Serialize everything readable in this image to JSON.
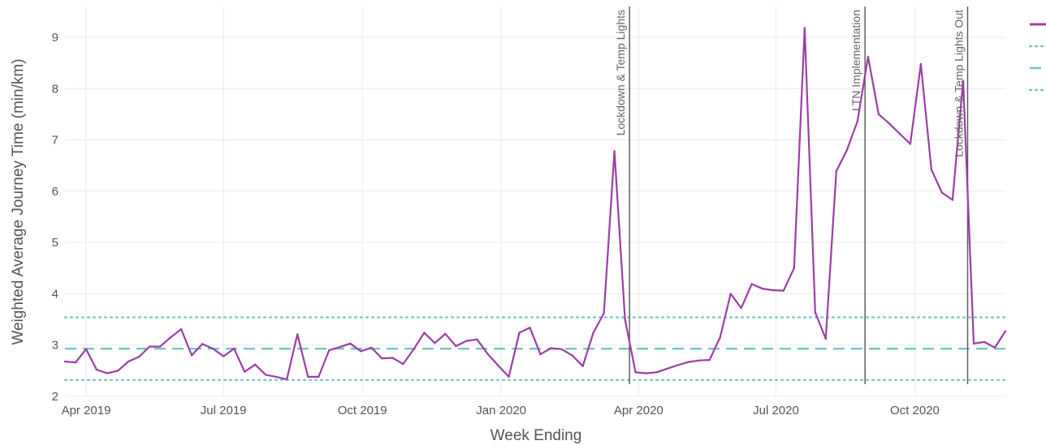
{
  "chart_data": {
    "type": "line",
    "xlabel": "Week Ending",
    "ylabel": "Weighted Average Journey Time (min/km)",
    "xlim": [
      "2019-03-18",
      "2020-11-30"
    ],
    "ylim": [
      2,
      9.6
    ],
    "grid": true,
    "x_ticks": [
      {
        "date": "2019-04-01",
        "label": "Apr 2019"
      },
      {
        "date": "2019-07-01",
        "label": "Jul 2019"
      },
      {
        "date": "2019-10-01",
        "label": "Oct 2019"
      },
      {
        "date": "2020-01-01",
        "label": "Jan 2020"
      },
      {
        "date": "2020-04-01",
        "label": "Apr 2020"
      },
      {
        "date": "2020-07-01",
        "label": "Jul 2020"
      },
      {
        "date": "2020-10-01",
        "label": "Oct 2020"
      }
    ],
    "y_ticks": [
      2,
      3,
      4,
      5,
      6,
      7,
      8,
      9
    ],
    "colors": {
      "series": "#9b3fa5",
      "reference": "#72c6c4",
      "event_line": "#555555",
      "grid": "#ebebeb"
    },
    "series": [
      {
        "x": [
          "2019-03-18",
          "2019-03-25",
          "2019-04-01",
          "2019-04-08",
          "2019-04-15",
          "2019-04-22",
          "2019-04-29",
          "2019-05-06",
          "2019-05-13",
          "2019-05-20",
          "2019-05-27",
          "2019-06-03",
          "2019-06-10",
          "2019-06-17",
          "2019-06-24",
          "2019-07-01",
          "2019-07-08",
          "2019-07-15",
          "2019-07-22",
          "2019-07-29",
          "2019-08-05",
          "2019-08-12",
          "2019-08-19",
          "2019-08-26",
          "2019-09-02",
          "2019-09-09",
          "2019-09-16",
          "2019-09-23",
          "2019-09-30",
          "2019-10-07",
          "2019-10-14",
          "2019-10-21",
          "2019-10-28",
          "2019-11-04",
          "2019-11-11",
          "2019-11-18",
          "2019-11-25",
          "2019-12-02",
          "2019-12-09",
          "2019-12-16",
          "2019-12-23",
          "2019-12-30",
          "2020-01-06",
          "2020-01-13",
          "2020-01-20",
          "2020-01-27",
          "2020-02-03",
          "2020-02-10",
          "2020-02-17",
          "2020-02-24",
          "2020-03-02",
          "2020-03-09",
          "2020-03-16",
          "2020-03-23",
          "2020-03-30",
          "2020-04-06",
          "2020-04-13",
          "2020-04-20",
          "2020-04-27",
          "2020-05-04",
          "2020-05-11",
          "2020-05-18",
          "2020-05-25",
          "2020-06-01",
          "2020-06-08",
          "2020-06-15",
          "2020-06-22",
          "2020-06-29",
          "2020-07-06",
          "2020-07-13",
          "2020-07-20",
          "2020-07-27",
          "2020-08-03",
          "2020-08-10",
          "2020-08-17",
          "2020-08-24",
          "2020-08-31",
          "2020-09-07",
          "2020-09-14",
          "2020-09-21",
          "2020-09-28",
          "2020-10-05",
          "2020-10-12",
          "2020-10-19",
          "2020-10-26",
          "2020-11-02",
          "2020-11-09",
          "2020-11-16",
          "2020-11-23",
          "2020-11-30"
        ],
        "y": [
          2.68,
          2.66,
          2.92,
          2.52,
          2.45,
          2.5,
          2.68,
          2.77,
          2.97,
          2.97,
          3.15,
          3.31,
          2.8,
          3.02,
          2.93,
          2.78,
          2.93,
          2.48,
          2.62,
          2.42,
          2.38,
          2.33,
          3.21,
          2.38,
          2.38,
          2.9,
          2.96,
          3.03,
          2.88,
          2.95,
          2.74,
          2.75,
          2.63,
          2.92,
          3.24,
          3.04,
          3.22,
          2.98,
          3.08,
          3.11,
          2.83,
          2.6,
          2.38,
          3.24,
          3.34,
          2.82,
          2.94,
          2.92,
          2.8,
          2.59,
          3.24,
          3.62,
          6.78,
          3.5,
          2.47,
          2.45,
          2.47,
          2.54,
          2.61,
          2.67,
          2.7,
          2.71,
          3.15,
          4.0,
          3.72,
          4.19,
          4.1,
          4.07,
          4.06,
          4.5,
          9.18,
          3.64,
          3.12,
          6.39,
          6.8,
          7.36,
          8.62,
          7.5,
          7.32,
          7.12,
          6.92,
          8.48,
          6.42,
          5.97,
          5.83,
          8.15,
          3.03,
          3.06,
          2.95,
          3.27
        ]
      }
    ],
    "reference_lines": [
      {
        "style": "dotted",
        "y": 3.54
      },
      {
        "style": "dashed",
        "y": 2.93
      },
      {
        "style": "dotted",
        "y": 2.32
      }
    ],
    "annotations": [
      {
        "x": "2020-03-26",
        "text": "Lockdown & Temp Lights"
      },
      {
        "x": "2020-08-29",
        "text": "LTN Implementation"
      },
      {
        "x": "2020-11-05",
        "text": "Lockdown & Temp Lights Out"
      }
    ],
    "legend": {
      "placement": "top-right",
      "items": [
        {
          "style": "solid",
          "color": "#9b3fa5"
        },
        {
          "style": "dotted",
          "color": "#72c6c4"
        },
        {
          "style": "dashed",
          "color": "#72c6c4"
        },
        {
          "style": "dotted",
          "color": "#72c6c4"
        }
      ]
    }
  }
}
